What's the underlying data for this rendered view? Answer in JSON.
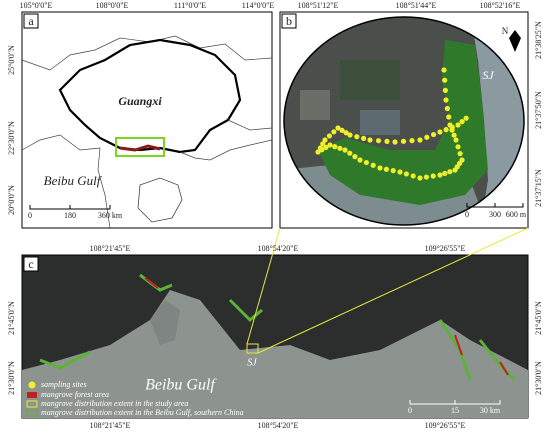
{
  "panel_a": {
    "label": "a",
    "lon_labels": [
      "105°0'0\"E",
      "108°0'0\"E",
      "111°0'0\"E",
      "114°0'0\"E"
    ],
    "lat_labels": [
      "25°0'0\"N",
      "22°30'0\"N",
      "20°0'0\"N"
    ],
    "region": "Guangxi",
    "sea": "Beibu Gulf",
    "scale": [
      "0",
      "180",
      "360 km"
    ]
  },
  "panel_b": {
    "label": "b",
    "lon_labels": [
      "108°51'12\"E",
      "108°51'44\"E",
      "108°52'16\"E"
    ],
    "lat_labels": [
      "21°38'25\"N",
      "21°37'50\"N",
      "21°37'15\"N"
    ],
    "site": "SJ",
    "north": "N",
    "scale": [
      "0",
      "300",
      "600 m"
    ]
  },
  "panel_c": {
    "label": "c",
    "lon_labels_top": [
      "108°21'45\"E",
      "108°54'20\"E",
      "109°26'55\"E"
    ],
    "lon_labels_bottom": [
      "108°21'45\"E",
      "108°54'20\"E",
      "109°26'55\"E"
    ],
    "lat_labels_left": [
      "21°45'0\"N",
      "21°30'0\"N"
    ],
    "lat_labels_right": [
      "21°45'0\"N",
      "21°30'0\"N"
    ],
    "site": "SJ",
    "sea": "Beibu Gulf",
    "scale": [
      "0",
      "15",
      "30 km"
    ],
    "legend": [
      "sampling sites",
      "mangrove forest area",
      "mangrove distribution extent in the study area",
      "mangrove distribution extent in the Beibu Gulf, southern China"
    ]
  }
}
